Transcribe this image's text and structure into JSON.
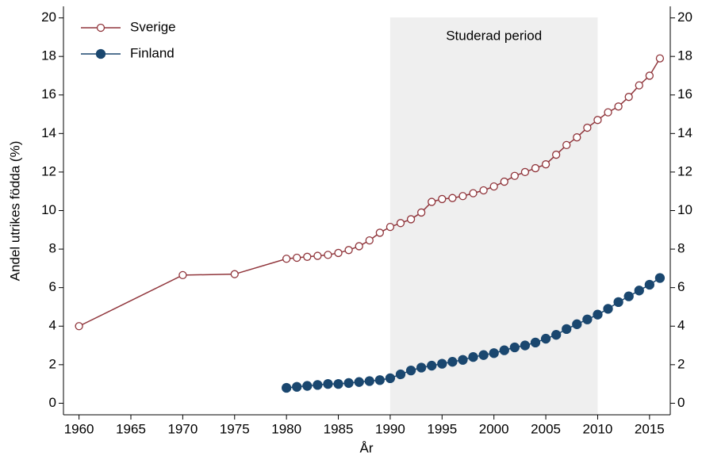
{
  "chart_data": {
    "type": "line",
    "x_label": "År",
    "y_label": "Andel utrikes födda (%)",
    "xlim": [
      1958.5,
      2017
    ],
    "xticks": [
      1960,
      1965,
      1970,
      1975,
      1980,
      1985,
      1990,
      1995,
      2000,
      2005,
      2010,
      2015
    ],
    "ylim": [
      -0.6,
      20.6
    ],
    "yticks": [
      0,
      2,
      4,
      6,
      8,
      10,
      12,
      14,
      16,
      18,
      20
    ],
    "mirror_y_axis": true,
    "shaded_region": {
      "x": [
        1990,
        2010
      ],
      "label": "Studerad period",
      "color": "#efefef"
    },
    "legend": "top-left",
    "series": [
      {
        "name": "Sverige",
        "color": "#90353b",
        "marker": "hollow",
        "x": [
          1960,
          1970,
          1975,
          1980,
          1981,
          1982,
          1983,
          1984,
          1985,
          1986,
          1987,
          1988,
          1989,
          1990,
          1991,
          1992,
          1993,
          1994,
          1995,
          1996,
          1997,
          1998,
          1999,
          2000,
          2001,
          2002,
          2003,
          2004,
          2005,
          2006,
          2007,
          2008,
          2009,
          2010,
          2011,
          2012,
          2013,
          2014,
          2015,
          2016
        ],
        "values": [
          4.0,
          6.65,
          6.7,
          7.5,
          7.55,
          7.6,
          7.65,
          7.7,
          7.8,
          7.95,
          8.15,
          8.45,
          8.85,
          9.15,
          9.35,
          9.55,
          9.9,
          10.45,
          10.6,
          10.65,
          10.75,
          10.9,
          11.05,
          11.25,
          11.5,
          11.8,
          12.0,
          12.2,
          12.4,
          12.9,
          13.4,
          13.8,
          14.3,
          14.7,
          15.1,
          15.4,
          15.9,
          16.5,
          17.0,
          17.9
        ]
      },
      {
        "name": "Finland",
        "color": "#1a476f",
        "marker": "filled",
        "x": [
          1980,
          1981,
          1982,
          1983,
          1984,
          1985,
          1986,
          1987,
          1988,
          1989,
          1990,
          1991,
          1992,
          1993,
          1994,
          1995,
          1996,
          1997,
          1998,
          1999,
          2000,
          2001,
          2002,
          2003,
          2004,
          2005,
          2006,
          2007,
          2008,
          2009,
          2010,
          2011,
          2012,
          2013,
          2014,
          2015,
          2016
        ],
        "values": [
          0.8,
          0.85,
          0.9,
          0.95,
          1.0,
          1.0,
          1.05,
          1.1,
          1.15,
          1.2,
          1.3,
          1.5,
          1.7,
          1.85,
          1.95,
          2.05,
          2.15,
          2.25,
          2.4,
          2.5,
          2.6,
          2.75,
          2.9,
          3.0,
          3.15,
          3.35,
          3.55,
          3.85,
          4.1,
          4.35,
          4.6,
          4.9,
          5.25,
          5.55,
          5.85,
          6.15,
          6.5
        ]
      }
    ]
  }
}
